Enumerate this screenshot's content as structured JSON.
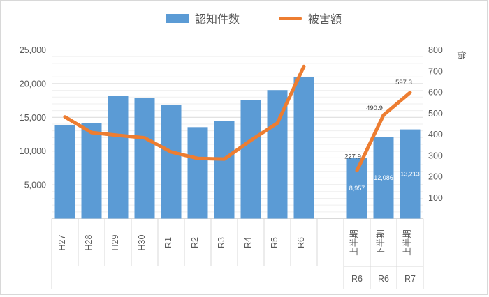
{
  "legend": {
    "items": [
      {
        "label": "認知件数",
        "type": "bar",
        "color": "#5B9BD5"
      },
      {
        "label": "被害額",
        "type": "line",
        "color": "#ED7D31"
      }
    ]
  },
  "chart_data": {
    "type": "bar",
    "subtype": "combo-bar-line-dual-axis",
    "categories": [
      "H27",
      "H28",
      "H29",
      "H30",
      "R1",
      "R2",
      "R3",
      "R4",
      "R5",
      "R6",
      "",
      "上半期",
      "下半期",
      "上半期"
    ],
    "category_groups": [
      "",
      "",
      "",
      "",
      "",
      "",
      "",
      "",
      "",
      "",
      "",
      "R6",
      "R6",
      "R7"
    ],
    "series": [
      {
        "name": "認知件数",
        "type": "bar",
        "axis": "left",
        "color": "#5B9BD5",
        "values": [
          13824,
          14154,
          18212,
          17844,
          16851,
          13550,
          14498,
          17570,
          19038,
          20987,
          null,
          8957,
          12086,
          13213
        ],
        "data_labels": {
          "11": "8,957",
          "12": "12,086",
          "13": "13,213"
        },
        "data_label_color": "#FFFFFF"
      },
      {
        "name": "被害額",
        "type": "line",
        "axis": "right",
        "color": "#ED7D31",
        "values": [
          482.0,
          407.7,
          394.7,
          382.9,
          315.8,
          285.2,
          282.1,
          370.8,
          452.6,
          721.5,
          null,
          227.9,
          490.9,
          597.3
        ],
        "data_labels": {
          "11": "227.9",
          "12": "490.9",
          "13": "597.3"
        },
        "data_label_color": "#404040"
      }
    ],
    "left_axis": {
      "ticks": [
        "25,000",
        "20,000",
        "15,000",
        "10,000",
        "5,000"
      ],
      "min": 0,
      "max": 25000,
      "major": 5000,
      "minor": 1000
    },
    "right_axis": {
      "ticks": [
        "800",
        "700",
        "600",
        "500",
        "400",
        "300",
        "200",
        "100"
      ],
      "min": 0,
      "max": 800,
      "major": 100,
      "title": "億"
    },
    "grid": {
      "major_on": true,
      "minor_on": true
    },
    "legend_position": "top",
    "colors": {
      "major_grid": "#D9D9D9",
      "minor_grid": "#EFEFEF",
      "axis_text": "#595959",
      "axis_line": "#D9D9D9"
    }
  }
}
